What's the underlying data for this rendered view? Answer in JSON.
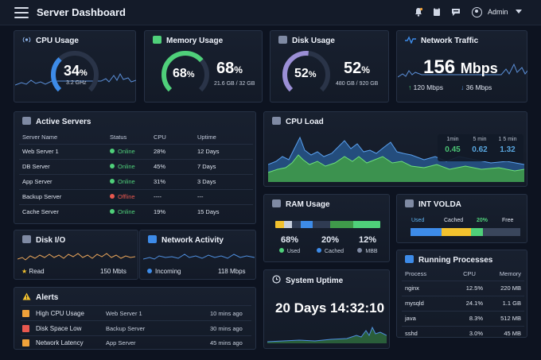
{
  "header": {
    "title": "Server Dashboard",
    "user": "Admin"
  },
  "cpu": {
    "title": "CPU Usage",
    "percent": "34",
    "unit": "%",
    "freq": "3.2 GHz",
    "value": 0.34
  },
  "memory": {
    "title": "Memory Usage",
    "gauge_percent": "68",
    "unit": "%",
    "percent": "68",
    "unit2": "%",
    "detail": "21.6 GB / 32 GB",
    "value": 0.68
  },
  "disk": {
    "title": "Disk Usage",
    "gauge_percent": "52",
    "unit": "%",
    "percent": "52",
    "unit2": "%",
    "detail": "480 GB / 920 GB",
    "value": 0.52
  },
  "network": {
    "title": "Network Traffic",
    "rate": "156",
    "unit": "Mbps",
    "up": "120 Mbps",
    "down": "36 Mbps"
  },
  "servers": {
    "title": "Active Servers",
    "headers": [
      "Server Name",
      "Status",
      "CPU",
      "Uptime"
    ],
    "rows": [
      {
        "name": "Web Server 1",
        "status": "Online",
        "cpu": "28%",
        "uptime": "12 Days",
        "ok": true
      },
      {
        "name": "DB Server",
        "status": "Online",
        "cpu": "45%",
        "uptime": "7 Days",
        "ok": true
      },
      {
        "name": "App Server",
        "status": "Online",
        "cpu": "31%",
        "uptime": "3 Days",
        "ok": true
      },
      {
        "name": "Backup Server",
        "status": "Offline",
        "cpu": "----",
        "uptime": "---",
        "ok": false
      },
      {
        "name": "Cache Server",
        "status": "Online",
        "cpu": "19%",
        "uptime": "15 Days",
        "ok": true
      }
    ]
  },
  "cpuload": {
    "title": "CPU Load",
    "labels": [
      "1min",
      "5 min",
      "1 5 min"
    ],
    "values": [
      "0.45",
      "0.62",
      "1.32"
    ]
  },
  "ram": {
    "title": "RAM Usage",
    "stats": [
      {
        "value": "68%",
        "label": "Used"
      },
      {
        "value": "20%",
        "label": "Cached"
      },
      {
        "value": "12%",
        "label": "MBB"
      }
    ]
  },
  "intvolda": {
    "title": "INT VOLDA",
    "used": "Used",
    "cached": "Cached",
    "pct": "20%",
    "free": "Free"
  },
  "diskio": {
    "title": "Disk I/O",
    "label": "Read",
    "value": "150 Mbts"
  },
  "netact": {
    "title": "Network Activity",
    "label": "Incoming",
    "value": "118 Mbps"
  },
  "uptime": {
    "title": "System Uptime",
    "value": "20 Days 14:32:10"
  },
  "processes": {
    "title": "Running Processes",
    "headers": [
      "Process",
      "CPU",
      "Memory"
    ],
    "rows": [
      {
        "name": "nginx",
        "cpu": "12.5%",
        "mem": "220 MB"
      },
      {
        "name": "mysqld",
        "cpu": "24.1%",
        "mem": "1.1 GB"
      },
      {
        "name": "java",
        "cpu": "8.3%",
        "mem": "512 MB"
      },
      {
        "name": "sshd",
        "cpu": "3.0%",
        "mem": "45 MB"
      }
    ]
  },
  "alerts": {
    "title": "Alerts",
    "rows": [
      {
        "name": "High CPU Usage",
        "server": "Web Server 1",
        "time": "10 mins ago"
      },
      {
        "name": "Disk Space Low",
        "server": "Backup Server",
        "time": "30 mins ago"
      },
      {
        "name": "Network Latency",
        "server": "App Server",
        "time": "45 mins ago"
      }
    ]
  },
  "colors": {
    "green": "#4fd07a",
    "blue": "#3d8be8",
    "orange": "#f0a23a",
    "red": "#e8584f",
    "yellow": "#f2c12e",
    "purple": "#9b8fd6"
  }
}
